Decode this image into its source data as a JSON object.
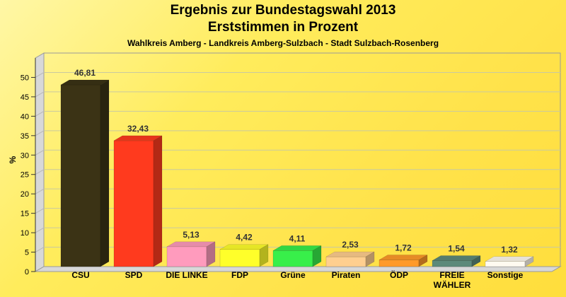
{
  "chart_data": {
    "type": "bar",
    "title": "Ergebnis zur Bundestagswahl 2013",
    "subtitle": "Erststimmen in Prozent",
    "caption": "Wahlkreis Amberg - Landkreis Amberg-Sulzbach - Stadt Sulzbach-Rosenberg",
    "ylabel": "%",
    "ylim": [
      0,
      55
    ],
    "yticks": [
      0,
      5,
      10,
      15,
      20,
      25,
      30,
      35,
      40,
      45,
      50
    ],
    "grid": true,
    "categories": [
      "CSU",
      "SPD",
      "DIE LINKE",
      "FDP",
      "Grüne",
      "Piraten",
      "ÖDP",
      "FREIE|WÄHLER",
      "Sonstige"
    ],
    "values": [
      46.81,
      32.43,
      5.13,
      4.42,
      4.11,
      2.53,
      1.72,
      1.54,
      1.32
    ],
    "value_labels": [
      "46,81",
      "32,43",
      "5,13",
      "4,42",
      "4,11",
      "2,53",
      "1,72",
      "1,54",
      "1,32"
    ],
    "colors": [
      "#3b3315",
      "#ff3a1e",
      "#ff9bbd",
      "#ffff2a",
      "#38ef4a",
      "#ffcf8f",
      "#ff9a2a",
      "#5d8a7a",
      "#fffaf0"
    ]
  }
}
